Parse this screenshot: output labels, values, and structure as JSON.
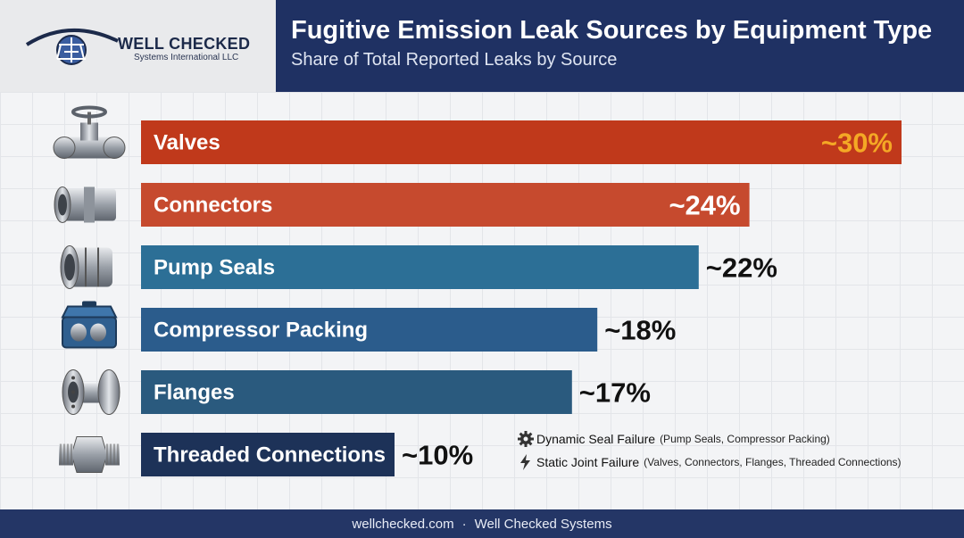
{
  "brand": {
    "name": "WELL CHECKED",
    "sub": "Systems International LLC"
  },
  "header": {
    "title": "Fugitive Emission Leak Sources by Equipment Type",
    "subtitle": "Share of Total Reported Leaks by Source"
  },
  "chart_data": {
    "type": "bar",
    "orientation": "horizontal",
    "categories": [
      "Valves",
      "Connectors",
      "Pump Seals",
      "Compressor Packing",
      "Flanges",
      "Threaded Connections"
    ],
    "values": [
      30,
      24,
      22,
      18,
      17,
      10
    ],
    "value_labels": [
      "~30%",
      "~24%",
      "~22%",
      "~18%",
      "~17%",
      "~10%"
    ],
    "colors": [
      "#c0391b",
      "#c64a2e",
      "#2c6f96",
      "#2b5c8c",
      "#2a5a7e",
      "#1d3258"
    ],
    "icons": [
      "gate-valve-icon",
      "pipe-connector-icon",
      "pump-seal-icon",
      "compressor-box-icon",
      "flange-icon",
      "threaded-fitting-icon"
    ],
    "label_inside_bar_max": 2,
    "grid": true
  },
  "legend": {
    "items": [
      {
        "icon": "gear-icon",
        "title": "Dynamic Seal Failure",
        "detail": "(Pump Seals, Compressor Packing)"
      },
      {
        "icon": "lightning-icon",
        "title": "Static Joint Failure",
        "detail": "(Valves, Connectors, Flanges, Threaded Connections)"
      }
    ]
  },
  "footer": {
    "site": "wellchecked.com",
    "separator": "·",
    "company": "Well Checked Systems"
  }
}
